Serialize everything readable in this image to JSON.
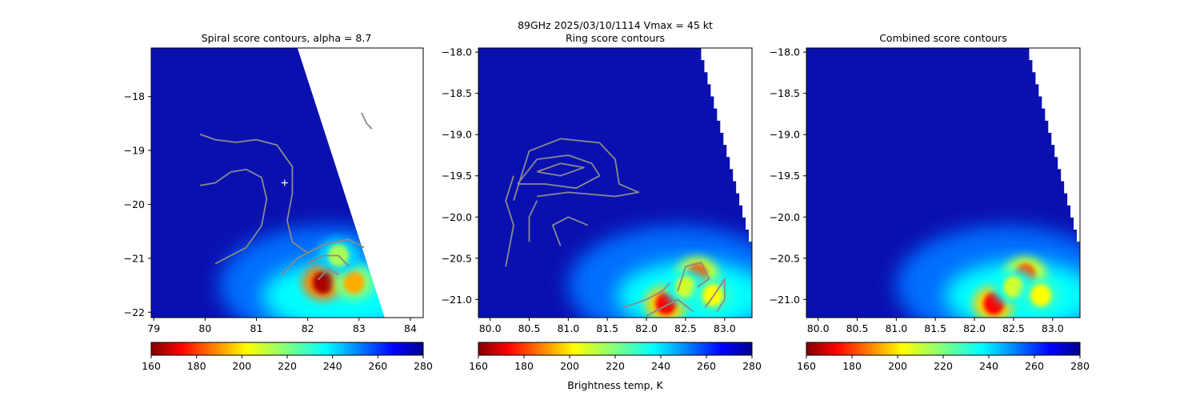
{
  "figure": {
    "suptitle_line1": "89GHz  2025/03/10/1114    Vmax = 45 kt"
  },
  "colorbar": {
    "label": "Brightness temp, K",
    "ticks": [
      160,
      180,
      200,
      220,
      240,
      260,
      280
    ],
    "range": [
      160,
      280
    ],
    "colormap": "jet_reversed"
  },
  "chart_data": [
    {
      "type": "heatmap",
      "title": "Spiral score contours, alpha =  8.7",
      "xlim": [
        78.95,
        84.25
      ],
      "ylim": [
        -22.1,
        -17.1
      ],
      "xticks": [
        79,
        80,
        81,
        82,
        83,
        84
      ],
      "yticks": [
        -18,
        -19,
        -20,
        -21,
        -22
      ],
      "swath_edge": [
        [
          81.8,
          -17.0
        ],
        [
          83.5,
          -22.1
        ]
      ],
      "center_marker": [
        81.55,
        -19.6
      ],
      "cold_cores": [
        {
          "x": 82.3,
          "y": -21.45,
          "tb": 165
        },
        {
          "x": 82.9,
          "y": -21.45,
          "tb": 195
        },
        {
          "x": 82.6,
          "y": -20.95,
          "tb": 215
        }
      ],
      "contours": [
        [
          [
            79.9,
            -18.7
          ],
          [
            80.2,
            -18.8
          ],
          [
            80.6,
            -18.85
          ],
          [
            81.0,
            -18.8
          ],
          [
            81.4,
            -18.9
          ],
          [
            81.7,
            -19.3
          ],
          [
            81.7,
            -19.8
          ],
          [
            81.6,
            -20.3
          ],
          [
            81.7,
            -20.7
          ],
          [
            82.0,
            -20.9
          ]
        ],
        [
          [
            79.9,
            -19.65
          ],
          [
            80.2,
            -19.6
          ],
          [
            80.5,
            -19.4
          ],
          [
            80.8,
            -19.35
          ],
          [
            81.1,
            -19.5
          ],
          [
            81.2,
            -19.9
          ],
          [
            81.1,
            -20.4
          ],
          [
            80.8,
            -20.8
          ],
          [
            80.2,
            -21.1
          ]
        ],
        [
          [
            81.5,
            -21.3
          ],
          [
            81.8,
            -21.0
          ],
          [
            82.3,
            -20.75
          ],
          [
            82.8,
            -20.65
          ],
          [
            83.1,
            -20.8
          ]
        ],
        [
          [
            82.0,
            -21.1
          ],
          [
            82.3,
            -20.95
          ],
          [
            82.6,
            -20.95
          ],
          [
            82.8,
            -21.15
          ]
        ],
        [
          [
            82.2,
            -21.4
          ],
          [
            82.4,
            -21.2
          ],
          [
            82.6,
            -21.3
          ]
        ],
        [
          [
            83.05,
            -18.3
          ],
          [
            83.15,
            -18.5
          ],
          [
            83.25,
            -18.6
          ]
        ]
      ]
    },
    {
      "type": "heatmap",
      "title": "Ring score contours",
      "xlim": [
        79.85,
        83.35
      ],
      "ylim": [
        -21.22,
        -17.95
      ],
      "xticks": [
        80.0,
        80.5,
        81.0,
        81.5,
        82.0,
        82.5,
        83.0
      ],
      "yticks": [
        -18.0,
        -18.5,
        -19.0,
        -19.5,
        -20.0,
        -20.5,
        -21.0
      ],
      "swath_edge": [
        [
          82.7,
          -17.95
        ],
        [
          83.35,
          -20.3
        ]
      ],
      "cold_cores": [
        {
          "x": 82.25,
          "y": -21.05,
          "tb": 175
        },
        {
          "x": 82.65,
          "y": -20.7,
          "tb": 185
        },
        {
          "x": 82.5,
          "y": -20.85,
          "tb": 210
        },
        {
          "x": 82.85,
          "y": -20.95,
          "tb": 205
        }
      ],
      "contours": [
        [
          [
            80.35,
            -19.6
          ],
          [
            80.6,
            -19.3
          ],
          [
            81.0,
            -19.25
          ],
          [
            81.3,
            -19.35
          ],
          [
            81.4,
            -19.5
          ],
          [
            81.1,
            -19.65
          ],
          [
            80.7,
            -19.6
          ],
          [
            80.35,
            -19.6
          ]
        ],
        [
          [
            80.6,
            -19.45
          ],
          [
            80.9,
            -19.35
          ],
          [
            81.2,
            -19.4
          ],
          [
            80.9,
            -19.5
          ],
          [
            80.6,
            -19.45
          ]
        ],
        [
          [
            80.3,
            -19.8
          ],
          [
            80.5,
            -19.2
          ],
          [
            80.9,
            -19.05
          ],
          [
            81.4,
            -19.1
          ],
          [
            81.6,
            -19.3
          ],
          [
            81.65,
            -19.6
          ],
          [
            81.9,
            -19.7
          ],
          [
            81.6,
            -19.75
          ],
          [
            81.0,
            -19.7
          ],
          [
            80.6,
            -19.75
          ]
        ],
        [
          [
            80.2,
            -20.6
          ],
          [
            80.3,
            -20.1
          ],
          [
            80.2,
            -19.8
          ],
          [
            80.3,
            -19.5
          ]
        ],
        [
          [
            80.5,
            -20.3
          ],
          [
            80.5,
            -20.0
          ],
          [
            80.6,
            -19.8
          ]
        ],
        [
          [
            80.9,
            -20.35
          ],
          [
            80.8,
            -20.1
          ],
          [
            81.0,
            -20.0
          ],
          [
            81.25,
            -20.1
          ]
        ],
        [
          [
            81.7,
            -21.1
          ],
          [
            82.0,
            -21.0
          ],
          [
            82.2,
            -20.9
          ],
          [
            82.3,
            -20.8
          ]
        ],
        [
          [
            82.0,
            -21.2
          ],
          [
            82.2,
            -21.1
          ],
          [
            82.4,
            -21.0
          ],
          [
            82.6,
            -21.15
          ]
        ],
        [
          [
            82.4,
            -20.9
          ],
          [
            82.5,
            -20.6
          ],
          [
            82.7,
            -20.55
          ],
          [
            82.8,
            -20.75
          ],
          [
            82.65,
            -20.85
          ]
        ],
        [
          [
            82.75,
            -21.1
          ],
          [
            82.9,
            -20.9
          ],
          [
            83.0,
            -20.75
          ],
          [
            83.0,
            -21.0
          ],
          [
            82.9,
            -21.15
          ]
        ]
      ]
    },
    {
      "type": "heatmap",
      "title": "Combined score contours",
      "xlim": [
        79.85,
        83.35
      ],
      "ylim": [
        -21.22,
        -17.95
      ],
      "xticks": [
        80.0,
        80.5,
        81.0,
        81.5,
        82.0,
        82.5,
        83.0
      ],
      "yticks": [
        -18.0,
        -18.5,
        -19.0,
        -19.5,
        -20.0,
        -20.5,
        -21.0
      ],
      "swath_edge": [
        [
          82.7,
          -17.95
        ],
        [
          83.35,
          -20.3
        ]
      ],
      "cold_cores": [
        {
          "x": 82.25,
          "y": -21.05,
          "tb": 175
        },
        {
          "x": 82.65,
          "y": -20.7,
          "tb": 185
        },
        {
          "x": 82.5,
          "y": -20.85,
          "tb": 210
        },
        {
          "x": 82.85,
          "y": -20.95,
          "tb": 205
        }
      ],
      "contours": []
    }
  ]
}
